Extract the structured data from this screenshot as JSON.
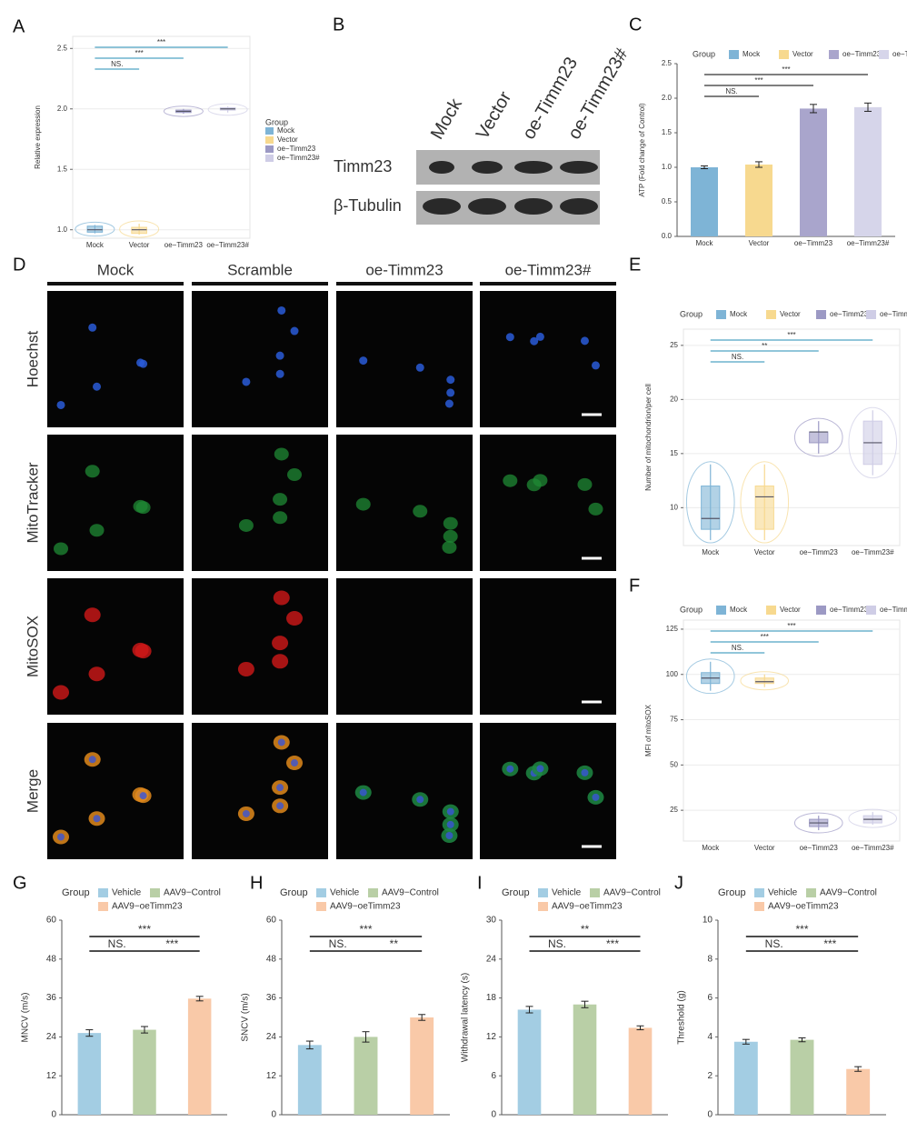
{
  "panel_labels": [
    "A",
    "B",
    "C",
    "D",
    "E",
    "F",
    "G",
    "H",
    "I",
    "J"
  ],
  "western_blot": {
    "lanes": [
      "Mock",
      "Vector",
      "oe-Timm23",
      "oe-Timm23#"
    ],
    "proteins": [
      "Timm23",
      "β-Tubulin"
    ]
  },
  "imaging": {
    "groups": [
      "Mock",
      "Scramble",
      "oe-Timm23",
      "oe-Timm23#"
    ],
    "stains": [
      "Hoechst",
      "MitoTracker",
      "MitoSOX",
      "Merge"
    ]
  },
  "chart_data": [
    {
      "type": "box",
      "categories": [
        "Mock",
        "Vector",
        "oe−Timm23",
        "oe−Timm23#"
      ],
      "colors": [
        "#7eb4d6",
        "#f7d98f",
        "#9c99c4",
        "#cfcde6"
      ],
      "median": [
        1.0,
        1.0,
        1.98,
        2.0
      ],
      "q1": [
        0.98,
        0.97,
        1.97,
        1.99
      ],
      "q3": [
        1.03,
        1.02,
        1.99,
        2.01
      ],
      "whisker_low": [
        0.97,
        0.96,
        1.96,
        1.97
      ],
      "whisker_high": [
        1.04,
        1.05,
        2.0,
        2.02
      ],
      "ylim": [
        0.93,
        2.6
      ],
      "yticks": [
        {
          "value": 1,
          "label": "1.0"
        },
        1.5,
        {
          "value": 2,
          "label": "2.0"
        },
        2.5
      ],
      "y_label": "Relative expression",
      "grid": true,
      "legend_title": "Group",
      "legend": "right",
      "annotation_color": "#4fa3c4",
      "annotations": [
        {
          "text": "NS.",
          "between": [
            "Mock",
            "Vector"
          ]
        },
        {
          "text": "***",
          "between": [
            "Mock",
            "oe−Timm23"
          ]
        },
        {
          "text": "***",
          "between": [
            "Mock",
            "oe−Timm23#"
          ]
        }
      ]
    },
    {
      "type": "bar",
      "categories": [
        "Mock",
        "Vector",
        "oe−Timm23",
        "oe−Timm23#"
      ],
      "colors": [
        "#7eb4d6",
        "#f7d98f",
        "#a9a5cc",
        "#d6d5ea"
      ],
      "values": [
        1.0,
        1.04,
        1.85,
        1.87
      ],
      "errors": [
        0.02,
        0.04,
        0.06,
        0.06
      ],
      "ylim": [
        0,
        2.5
      ],
      "yticks": [
        {
          "value": 0,
          "label": "0.0"
        },
        0.5,
        {
          "value": 1,
          "label": "1.0"
        },
        1.5,
        {
          "value": 2,
          "label": "2.0"
        },
        2.5
      ],
      "y_label": "ATP (Fold change of Control)",
      "grid": false,
      "legend_title": "Group",
      "legend": "top",
      "annotation_color": "#333333",
      "annotations": [
        {
          "text": "NS.",
          "between": [
            "Mock",
            "Vector"
          ]
        },
        {
          "text": "***",
          "between": [
            "Mock",
            "oe−Timm23"
          ]
        },
        {
          "text": "***",
          "between": [
            "Mock",
            "oe−Timm23#"
          ]
        }
      ]
    },
    {
      "type": "box",
      "categories": [
        "Mock",
        "Vector",
        "oe−Timm23",
        "oe−Timm23#"
      ],
      "colors": [
        "#7eb4d6",
        "#f7d98f",
        "#9c99c4",
        "#cfcde6"
      ],
      "median": [
        9,
        11,
        17,
        16
      ],
      "q1": [
        8,
        8,
        16,
        14
      ],
      "q3": [
        12,
        12,
        17,
        18
      ],
      "whisker_low": [
        7,
        7,
        15,
        13
      ],
      "whisker_high": [
        14,
        14,
        18,
        19
      ],
      "ylim": [
        6.5,
        26.5
      ],
      "yticks": [
        10,
        15,
        20,
        25
      ],
      "y_label": "Number of mitochondrion/per cell",
      "grid": true,
      "legend_title": "Group",
      "legend": "top",
      "annotation_color": "#4fa3c4",
      "annotations": [
        {
          "text": "NS.",
          "between": [
            "Mock",
            "Vector"
          ]
        },
        {
          "text": "**",
          "between": [
            "Mock",
            "oe−Timm23"
          ]
        },
        {
          "text": "***",
          "between": [
            "Mock",
            "oe−Timm23#"
          ]
        }
      ]
    },
    {
      "type": "box",
      "categories": [
        "Mock",
        "Vector",
        "oe−Timm23",
        "oe−Timm23#"
      ],
      "colors": [
        "#7eb4d6",
        "#f7d98f",
        "#9c99c4",
        "#cfcde6"
      ],
      "median": [
        98,
        96,
        18,
        20
      ],
      "q1": [
        95,
        95,
        16,
        18
      ],
      "q3": [
        101,
        98,
        20,
        22
      ],
      "whisker_low": [
        91,
        93,
        14,
        17
      ],
      "whisker_high": [
        107,
        100,
        22,
        24
      ],
      "ylim": [
        8,
        130
      ],
      "yticks": [
        25,
        50,
        75,
        100,
        125
      ],
      "y_label": "MFI of mitoSOX",
      "grid": true,
      "legend_title": "Group",
      "legend": "top",
      "annotation_color": "#4fa3c4",
      "annotations": [
        {
          "text": "NS.",
          "between": [
            "Mock",
            "Vector"
          ]
        },
        {
          "text": "***",
          "between": [
            "Mock",
            "oe−Timm23"
          ]
        },
        {
          "text": "***",
          "between": [
            "Mock",
            "oe−Timm23#"
          ]
        }
      ]
    },
    {
      "type": "bar",
      "categories": [
        "Vehicle",
        "AAV9−Control",
        "AAV9−oeTimm23"
      ],
      "colors": [
        "#a3cde3",
        "#b9cfa6",
        "#f9c9a8"
      ],
      "values": [
        25.2,
        26.2,
        35.8
      ],
      "errors": [
        1.0,
        1.0,
        0.7
      ],
      "ylim": [
        0,
        60
      ],
      "yticks": [
        0,
        12,
        24,
        36,
        48,
        60
      ],
      "y_label": "MNCV (m/s)",
      "grid": false,
      "show_x_labels": false,
      "legend_title": "Group",
      "legend": "top",
      "annotation_color": "#111111",
      "annotations": [
        {
          "text": "NS.",
          "between": [
            "Vehicle",
            "AAV9−Control"
          ]
        },
        {
          "text": "***",
          "between": [
            "Vehicle",
            "AAV9−oeTimm23"
          ]
        },
        {
          "text": "***",
          "between": [
            "AAV9−Control",
            "AAV9−oeTimm23"
          ]
        }
      ]
    },
    {
      "type": "bar",
      "categories": [
        "Vehicle",
        "AAV9−Control",
        "AAV9−oeTimm23"
      ],
      "colors": [
        "#a3cde3",
        "#b9cfa6",
        "#f9c9a8"
      ],
      "values": [
        21.5,
        24,
        30
      ],
      "errors": [
        1.2,
        1.6,
        0.9
      ],
      "ylim": [
        0,
        60
      ],
      "yticks": [
        0,
        12,
        24,
        36,
        48,
        60
      ],
      "y_label": "SNCV (m/s)",
      "grid": false,
      "show_x_labels": false,
      "legend_title": "Group",
      "legend": "top",
      "annotation_color": "#111111",
      "annotations": [
        {
          "text": "NS.",
          "between": [
            "Vehicle",
            "AAV9−Control"
          ]
        },
        {
          "text": "***",
          "between": [
            "Vehicle",
            "AAV9−oeTimm23"
          ]
        },
        {
          "text": "**",
          "between": [
            "AAV9−Control",
            "AAV9−oeTimm23"
          ]
        }
      ]
    },
    {
      "type": "bar",
      "categories": [
        "Vehicle",
        "AAV9−Control",
        "AAV9−oeTimm23"
      ],
      "colors": [
        "#a3cde3",
        "#b9cfa6",
        "#f9c9a8"
      ],
      "values": [
        16.2,
        17,
        13.4
      ],
      "errors": [
        0.5,
        0.5,
        0.3
      ],
      "ylim": [
        0,
        30
      ],
      "yticks": [
        0,
        6,
        12,
        18,
        24,
        30
      ],
      "y_label": "Withdrawal latency (s)",
      "grid": false,
      "show_x_labels": false,
      "legend_title": "Group",
      "legend": "top",
      "annotation_color": "#111111",
      "annotations": [
        {
          "text": "NS.",
          "between": [
            "Vehicle",
            "AAV9−Control"
          ]
        },
        {
          "text": "**",
          "between": [
            "Vehicle",
            "AAV9−oeTimm23"
          ]
        },
        {
          "text": "***",
          "between": [
            "AAV9−Control",
            "AAV9−oeTimm23"
          ]
        }
      ]
    },
    {
      "type": "bar",
      "categories": [
        "Vehicle",
        "AAV9−Control",
        "AAV9−oeTimm23"
      ],
      "colors": [
        "#a3cde3",
        "#b9cfa6",
        "#f9c9a8"
      ],
      "values": [
        3.75,
        3.85,
        2.35
      ],
      "errors": [
        0.12,
        0.1,
        0.12
      ],
      "ylim": [
        0,
        10
      ],
      "yticks": [
        0,
        2,
        4,
        6,
        8,
        10
      ],
      "y_label": "Threshold (g)",
      "grid": false,
      "show_x_labels": false,
      "legend_title": "Group",
      "legend": "top",
      "annotation_color": "#111111",
      "annotations": [
        {
          "text": "NS.",
          "between": [
            "Vehicle",
            "AAV9−Control"
          ]
        },
        {
          "text": "***",
          "between": [
            "Vehicle",
            "AAV9−oeTimm23"
          ]
        },
        {
          "text": "***",
          "between": [
            "AAV9−Control",
            "AAV9−oeTimm23"
          ]
        }
      ]
    }
  ]
}
